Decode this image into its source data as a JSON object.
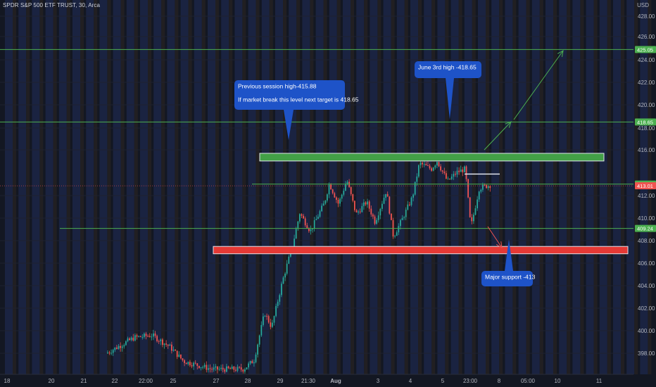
{
  "header": {
    "symbol": "SPDR S&P 500 ETF TRUST, 30, Arca",
    "currency": "USD"
  },
  "colors": {
    "background": "#131722",
    "up": "#26a69a",
    "down": "#ef5350",
    "level_line": "#4caf50",
    "current_price": "#ef5350",
    "resistance_zone": "#43a047",
    "support_zone": "#e53935",
    "callout": "#1e53c8"
  },
  "chart_data": {
    "type": "candlestick",
    "ylim": [
      397,
      428.5
    ],
    "y_ticks": [
      "428.00",
      "426.00",
      "424.00",
      "422.00",
      "420.00",
      "418.00",
      "416.00",
      "412.00",
      "410.00",
      "408.00",
      "406.00",
      "404.00",
      "402.00",
      "400.00",
      "398.00"
    ],
    "x_ticks": [
      "18",
      "20",
      "21",
      "22",
      "22:00",
      "25",
      "27",
      "28",
      "29",
      "21:30",
      "Aug",
      "3",
      "4",
      "5",
      "23:00",
      "8",
      "05:00",
      "10",
      "11"
    ],
    "price_tags": [
      {
        "value": 425.05,
        "label": "425.05",
        "color": "#4caf50"
      },
      {
        "value": 418.65,
        "label": "418.65",
        "color": "#4caf50"
      },
      {
        "value": 413.16,
        "label": "413.16",
        "color": "#4caf50"
      },
      {
        "value": 413.01,
        "label": "413.01",
        "color": "#ef5350"
      },
      {
        "value": 409.24,
        "label": "409.24",
        "color": "#4caf50"
      }
    ],
    "levels": [
      {
        "price": 425.05
      },
      {
        "price": 418.65
      },
      {
        "price": 413.16
      },
      {
        "price": 409.24
      }
    ],
    "zones": [
      {
        "name": "resistance",
        "top": 415.88,
        "bottom": 415.2
      },
      {
        "name": "support",
        "top": 407.65,
        "bottom": 407.0
      }
    ],
    "callouts": [
      {
        "lines": [
          "Previous session high-415.88",
          "If market break this level next target is 418.65"
        ]
      },
      {
        "lines": [
          "June 3rd high -418.65"
        ]
      },
      {
        "lines": [
          "Major support -413"
        ]
      }
    ]
  }
}
